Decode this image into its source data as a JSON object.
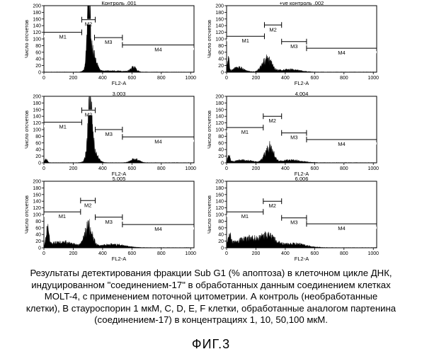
{
  "chart_data": [
    {
      "type": "histogram",
      "title": "Контроль .001",
      "ylabel": "Число отсчетов",
      "xlabel": "FL2-A",
      "xlim": [
        0,
        1023
      ],
      "ylim": [
        0,
        200
      ],
      "xticks": [
        0,
        200,
        400,
        600,
        800,
        1000
      ],
      "yticks": [
        0,
        20,
        40,
        60,
        80,
        100,
        120,
        140,
        160,
        180,
        200
      ],
      "peaks": [
        {
          "center": 305,
          "height": 190,
          "width": 10
        },
        {
          "center": 325,
          "height": 70,
          "width": 25
        },
        {
          "center": 610,
          "height": 14,
          "width": 20
        },
        {
          "center": 460,
          "height": 4,
          "width": 80
        }
      ],
      "markers": [
        {
          "name": "M1",
          "start": 0,
          "end": 258,
          "level": 120
        },
        {
          "name": "M2",
          "start": 258,
          "end": 350,
          "level": 158
        },
        {
          "name": "M3",
          "start": 345,
          "end": 535,
          "level": 104
        },
        {
          "name": "M4",
          "start": 535,
          "end": 1023,
          "level": 82
        }
      ]
    },
    {
      "type": "histogram",
      "title": "+ve контроль .002",
      "ylabel": "Число отсчетов",
      "xlabel": "FL2-A",
      "xlim": [
        0,
        1023
      ],
      "ylim": [
        0,
        200
      ],
      "xticks": [
        0,
        200,
        400,
        600,
        800,
        1000
      ],
      "yticks": [
        0,
        20,
        40,
        60,
        80,
        100,
        120,
        140,
        160,
        180,
        200
      ],
      "peaks": [
        {
          "center": 12,
          "height": 38,
          "width": 6
        },
        {
          "center": 80,
          "height": 14,
          "width": 40
        },
        {
          "center": 275,
          "height": 40,
          "width": 32
        },
        {
          "center": 430,
          "height": 8,
          "width": 70
        }
      ],
      "markers": [
        {
          "name": "M1",
          "start": 0,
          "end": 258,
          "level": 108
        },
        {
          "name": "M2",
          "start": 258,
          "end": 375,
          "level": 142
        },
        {
          "name": "M3",
          "start": 375,
          "end": 545,
          "level": 92
        },
        {
          "name": "M4",
          "start": 545,
          "end": 1023,
          "level": 72
        }
      ]
    },
    {
      "type": "histogram",
      "title": "3.003",
      "ylabel": "Число отсчетов",
      "xlabel": "FL2-A",
      "xlim": [
        0,
        1023
      ],
      "ylim": [
        0,
        200
      ],
      "xticks": [
        0,
        200,
        400,
        600,
        800,
        1000
      ],
      "yticks": [
        0,
        20,
        40,
        60,
        80,
        100,
        120,
        140,
        160,
        180,
        200
      ],
      "peaks": [
        {
          "center": 315,
          "height": 150,
          "width": 14
        },
        {
          "center": 330,
          "height": 40,
          "width": 30
        },
        {
          "center": 620,
          "height": 12,
          "width": 28
        },
        {
          "center": 15,
          "height": 12,
          "width": 8
        }
      ],
      "markers": [
        {
          "name": "M1",
          "start": 0,
          "end": 258,
          "level": 122
        },
        {
          "name": "M2",
          "start": 258,
          "end": 350,
          "level": 158
        },
        {
          "name": "M3",
          "start": 350,
          "end": 535,
          "level": 100
        },
        {
          "name": "M4",
          "start": 535,
          "end": 1023,
          "level": 78
        }
      ]
    },
    {
      "type": "histogram",
      "title": "4.004",
      "ylabel": "Число отсчетов",
      "xlabel": "FL2-A",
      "xlim": [
        0,
        1023
      ],
      "ylim": [
        0,
        200
      ],
      "xticks": [
        0,
        200,
        400,
        600,
        800,
        1000
      ],
      "yticks": [
        0,
        20,
        40,
        60,
        80,
        100,
        120,
        140,
        160,
        180,
        200
      ],
      "peaks": [
        {
          "center": 15,
          "height": 22,
          "width": 7
        },
        {
          "center": 110,
          "height": 8,
          "width": 60
        },
        {
          "center": 290,
          "height": 50,
          "width": 28
        },
        {
          "center": 440,
          "height": 8,
          "width": 70
        }
      ],
      "markers": [
        {
          "name": "M1",
          "start": 0,
          "end": 250,
          "level": 106
        },
        {
          "name": "M2",
          "start": 250,
          "end": 375,
          "level": 140
        },
        {
          "name": "M3",
          "start": 375,
          "end": 545,
          "level": 90
        },
        {
          "name": "M4",
          "start": 545,
          "end": 1023,
          "level": 70
        }
      ]
    },
    {
      "type": "histogram",
      "title": "5.005",
      "ylabel": "Число отсчетов",
      "xlabel": "FL2-A",
      "xlim": [
        0,
        1023
      ],
      "ylim": [
        0,
        200
      ],
      "xticks": [
        0,
        200,
        400,
        600,
        800,
        1000
      ],
      "yticks": [
        0,
        20,
        40,
        60,
        80,
        100,
        120,
        140,
        160,
        180,
        200
      ],
      "peaks": [
        {
          "center": 25,
          "height": 50,
          "width": 9
        },
        {
          "center": 120,
          "height": 18,
          "width": 80
        },
        {
          "center": 305,
          "height": 65,
          "width": 26
        },
        {
          "center": 470,
          "height": 10,
          "width": 80
        }
      ],
      "markers": [
        {
          "name": "M1",
          "start": 0,
          "end": 250,
          "level": 108
        },
        {
          "name": "M2",
          "start": 250,
          "end": 350,
          "level": 142
        },
        {
          "name": "M3",
          "start": 350,
          "end": 535,
          "level": 92
        },
        {
          "name": "M4",
          "start": 535,
          "end": 1023,
          "level": 70
        }
      ]
    },
    {
      "type": "histogram",
      "title": "6.006",
      "ylabel": "Число отсчетов",
      "xlabel": "FL2-A",
      "xlim": [
        0,
        1023
      ],
      "ylim": [
        0,
        200
      ],
      "xticks": [
        0,
        200,
        400,
        600,
        800,
        1000
      ],
      "yticks": [
        0,
        20,
        40,
        60,
        80,
        100,
        120,
        140,
        160,
        180,
        200
      ],
      "peaks": [
        {
          "center": 20,
          "height": 30,
          "width": 9
        },
        {
          "center": 160,
          "height": 30,
          "width": 100
        },
        {
          "center": 290,
          "height": 25,
          "width": 40
        },
        {
          "center": 460,
          "height": 12,
          "width": 80
        }
      ],
      "markers": [
        {
          "name": "M1",
          "start": 0,
          "end": 250,
          "level": 108
        },
        {
          "name": "M2",
          "start": 250,
          "end": 375,
          "level": 140
        },
        {
          "name": "M3",
          "start": 375,
          "end": 545,
          "level": 90
        },
        {
          "name": "M4",
          "start": 545,
          "end": 1023,
          "level": 72
        }
      ]
    }
  ],
  "caption": {
    "lines": [
      "Результаты детектирования фракции Sub G1 (% апоптоза) в клеточном цикле ДНК,",
      "индуцированном \"соединением-17\" в обработанных данным соединением клетках",
      "MOLT-4, с применением поточной цитометрии. А контроль (необработанные",
      "клетки), В стауроспорин 1 мкМ, C, D, E, F клетки, обработанные аналогом партенина",
      "(соединением-17) в концентрациях 1, 10, 50,100 мкМ."
    ]
  },
  "figure_label": "ФИГ.3",
  "colors": {
    "ink": "#000000",
    "background": "#ffffff"
  }
}
